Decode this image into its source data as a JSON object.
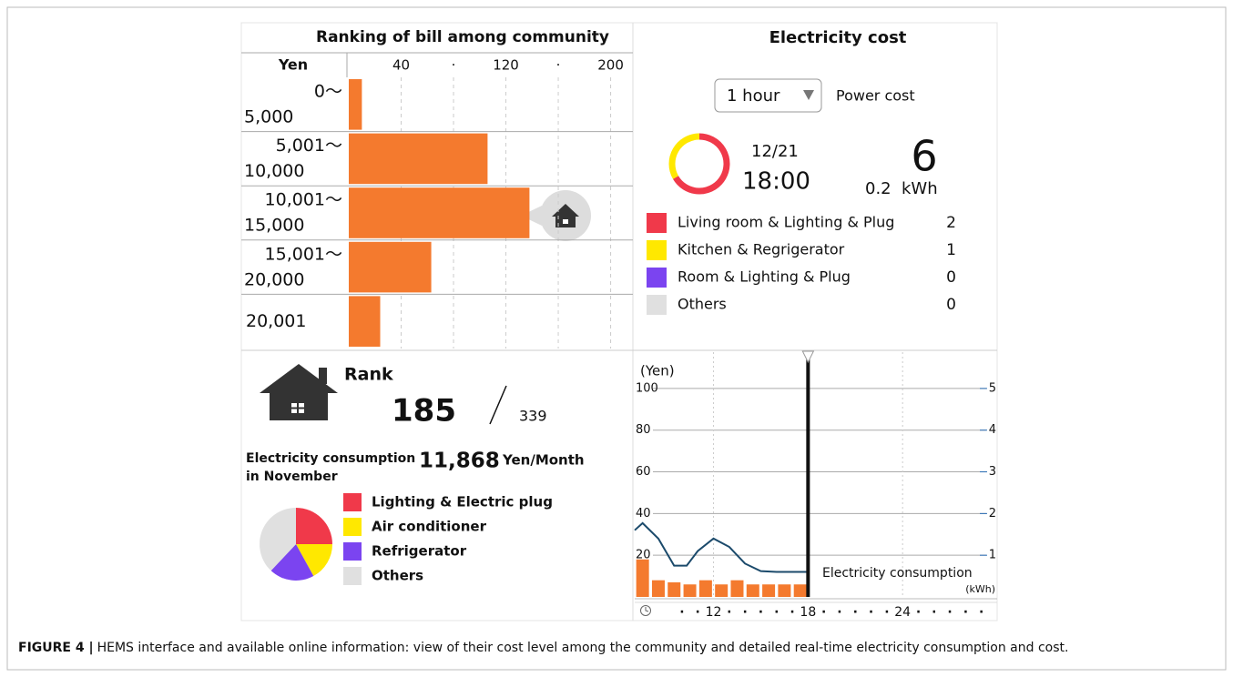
{
  "ranking": {
    "title": "Ranking of bill among community",
    "axis_label": "Yen",
    "categories": [
      [
        "0～",
        "5,000"
      ],
      [
        "5,001～",
        "10,000"
      ],
      [
        "10,001～",
        "15,000"
      ],
      [
        "15,001～",
        "20,000"
      ],
      [
        "20,001"
      ]
    ],
    "values": [
      10,
      106,
      138,
      63,
      24
    ],
    "color": "#f47a2e",
    "xlim": [
      0,
      217
    ],
    "xticks": [
      40,
      {
        "value": 80,
        "label": "·"
      },
      120,
      {
        "value": 160,
        "label": "·"
      },
      200
    ]
  },
  "rank": {
    "label": "Rank",
    "value": 185,
    "total": 339
  },
  "consumption": {
    "label": [
      "Electricity consumption",
      "in November"
    ],
    "value": "11,868",
    "unit": "Yen/Month",
    "pie": {
      "type": "pie",
      "categories": [
        "Lighting & Electric plug",
        "Air conditioner",
        "Refrigerator",
        "Others"
      ],
      "values": [
        25,
        17,
        20,
        38
      ],
      "colors": [
        "#f0394a",
        "#ffe800",
        "#7b44f0",
        "#e0e0e0"
      ]
    }
  },
  "cost": {
    "title": "Electricity cost",
    "period": "1 hour",
    "mode": "Power cost",
    "date": "12/21",
    "time": "18:00",
    "value": 6,
    "energy": 0.2,
    "energy_unit": "kWh",
    "breakdown": {
      "type": "donut",
      "categories": [
        "Living room  & Lighting & Plug",
        "Kitchen & Regrigerator",
        "Room & Lighting & Plug",
        "Others"
      ],
      "values": [
        2,
        1,
        0,
        0
      ],
      "colors": [
        "#f0394a",
        "#ffe800",
        "#7b44f0",
        "#e0e0e0"
      ]
    }
  },
  "timeline": {
    "type": "bar-line",
    "y_label": "(Yen)",
    "y2_label": "(kWh)",
    "xlim": [
      7,
      30
    ],
    "xticks": [
      {
        "value": 10,
        "label": "·"
      },
      {
        "value": 11,
        "label": "·"
      },
      12,
      {
        "value": 13,
        "label": "·"
      },
      {
        "value": 14,
        "label": "·"
      },
      {
        "value": 15,
        "label": "·"
      },
      {
        "value": 16,
        "label": "·"
      },
      {
        "value": 17,
        "label": "·"
      },
      18,
      {
        "value": 19,
        "label": "·"
      },
      {
        "value": 20,
        "label": "·"
      },
      {
        "value": 21,
        "label": "·"
      },
      {
        "value": 22,
        "label": "·"
      },
      {
        "value": 23,
        "label": "·"
      },
      24,
      {
        "value": 25,
        "label": "·"
      },
      {
        "value": 26,
        "label": "·"
      },
      {
        "value": 27,
        "label": "·"
      },
      {
        "value": 28,
        "label": "·"
      },
      {
        "value": 29,
        "label": "·"
      }
    ],
    "ylim": [
      0,
      110
    ],
    "yticks": [
      20,
      40,
      60,
      80,
      100
    ],
    "y2lim": [
      0,
      5.5
    ],
    "y2ticks": [
      1,
      2,
      3,
      4,
      5
    ],
    "cursor": 18,
    "series": [
      {
        "type": "bar",
        "color": "#f47a2e",
        "x": [
          7.5,
          8.5,
          9.5,
          10.5,
          11.5,
          12.5,
          13.5,
          14.5,
          15.5,
          16.5,
          17.5
        ],
        "values": [
          18,
          8,
          7,
          6,
          8,
          6,
          8,
          6,
          6,
          6,
          6
        ]
      },
      {
        "type": "line",
        "name": "Electricity consumption",
        "color": "#1b4a6b",
        "axis": "y2",
        "x": [
          7,
          7.5,
          8.5,
          9.5,
          10.3,
          11,
          12,
          13,
          14,
          15,
          16,
          17,
          18
        ],
        "values": [
          1.6,
          1.77,
          1.4,
          0.75,
          0.75,
          1.1,
          1.4,
          1.2,
          0.8,
          0.62,
          0.6,
          0.6,
          0.6
        ]
      }
    ]
  },
  "caption": {
    "label": "FIGURE 4 |",
    "text": "HEMS interface and available online information: view of their cost level among the community and detailed real-time electricity consumption and cost."
  }
}
